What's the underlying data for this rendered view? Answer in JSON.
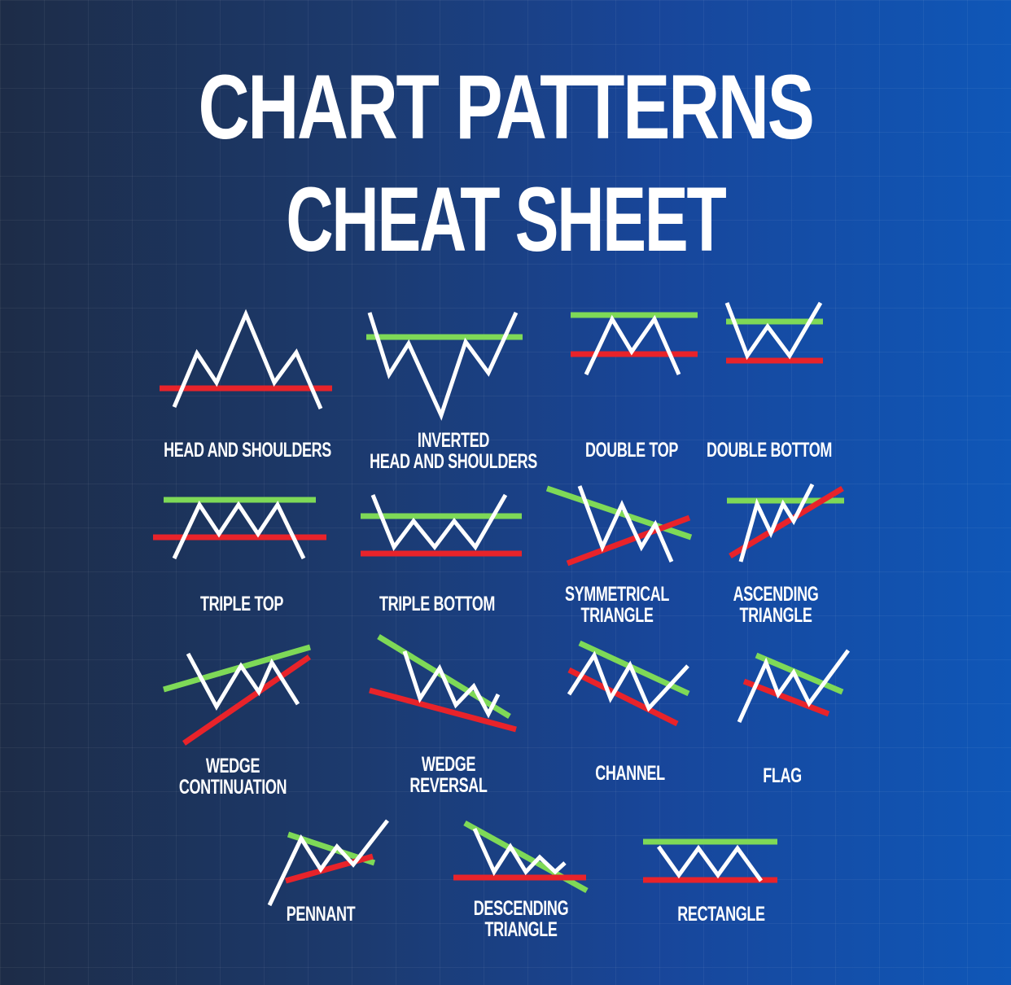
{
  "title": {
    "line1": "CHART PATTERNS",
    "line2": "CHEAT SHEET"
  },
  "colors": {
    "price_line": "#ffffff",
    "resistance_line": "#7ed957",
    "support_line": "#e8232a"
  },
  "patterns": [
    {
      "key": "head-and-shoulders",
      "label": "HEAD AND SHOULDERS"
    },
    {
      "key": "inverted-head-and-shoulders",
      "label": "INVERTED\nHEAD AND SHOULDERS"
    },
    {
      "key": "double-top",
      "label": "DOUBLE TOP"
    },
    {
      "key": "double-bottom",
      "label": "DOUBLE BOTTOM"
    },
    {
      "key": "triple-top",
      "label": "TRIPLE TOP"
    },
    {
      "key": "triple-bottom",
      "label": "TRIPLE BOTTOM"
    },
    {
      "key": "symmetrical-triangle",
      "label": "SYMMETRICAL\nTRIANGLE"
    },
    {
      "key": "ascending-triangle",
      "label": "ASCENDING\nTRIANGLE"
    },
    {
      "key": "wedge-continuation",
      "label": "WEDGE\nCONTINUATION"
    },
    {
      "key": "wedge-reversal",
      "label": "WEDGE\nREVERSAL"
    },
    {
      "key": "channel",
      "label": "CHANNEL"
    },
    {
      "key": "flag",
      "label": "FLAG"
    },
    {
      "key": "pennant",
      "label": "PENNANT"
    },
    {
      "key": "descending-triangle",
      "label": "DESCENDING\nTRIANGLE"
    },
    {
      "key": "rectangle",
      "label": "RECTANGLE"
    }
  ]
}
